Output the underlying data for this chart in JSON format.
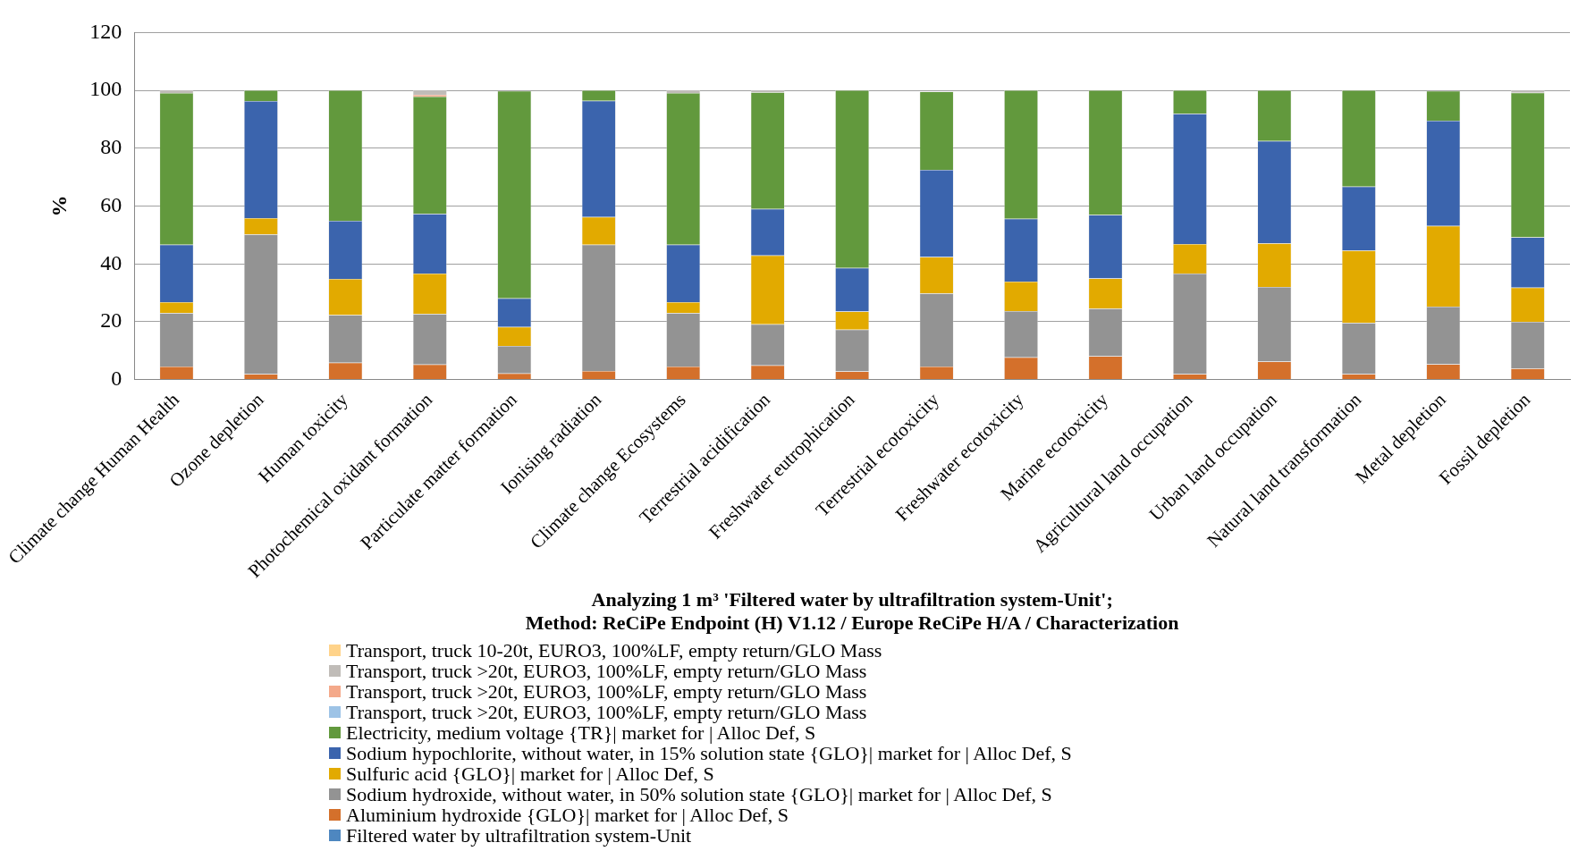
{
  "chart_data": {
    "type": "bar",
    "stacked": true,
    "xlabel": "Analyzing 1 m³ 'Filtered water by ultrafiltration system-Unit';\nMethod: ReCiPe Endpoint (H) V1.12 / Europe ReCiPe H/A / Characterization",
    "ylabel": "%",
    "categories": [
      "Climate change Human Health",
      "Ozone depletion",
      "Human toxicity",
      "Photochemical oxidant formation",
      "Particulate matter formation",
      "Ionising radiation",
      "Climate change Ecosystems",
      "Terrestrial acidification",
      "Freshwater eutrophication",
      "Terrestrial ecotoxicity",
      "Freshwater ecotoxicity",
      "Marine ecotoxicity",
      "Agricultural land occupation",
      "Urban land occupation",
      "Natural land transformation",
      "Metal depletion",
      "Fossil depletion"
    ],
    "ylim": [
      0,
      120
    ],
    "yticks": [
      0,
      20,
      40,
      60,
      80,
      100,
      120
    ],
    "grid": "y",
    "legend": "bottom",
    "series": [
      {
        "name": "Filtered water by ultrafiltration system-Unit",
        "color": "#4e87c0",
        "values": [
          null,
          null,
          null,
          null,
          null,
          null,
          null,
          null,
          null,
          null,
          null,
          null,
          null,
          null,
          null,
          null,
          null
        ]
      },
      {
        "name": "Aluminium hydroxide {GLO}| market for | Alloc Def, S",
        "color": "#d4702b",
        "values": [
          4.5,
          1.9,
          5.8,
          5.2,
          2.1,
          3.0,
          4.5,
          4.9,
          2.8,
          4.5,
          7.7,
          8.1,
          1.9,
          6.2,
          1.9,
          5.3,
          3.8
        ]
      },
      {
        "name": "Sodium hydroxide, without water, in 50% solution state {GLO}| market for | Alloc Def, S",
        "color": "#939393",
        "values": [
          18.5,
          48.3,
          16.5,
          17.5,
          9.5,
          43.6,
          18.5,
          14.2,
          14.5,
          25.3,
          16,
          16.4,
          34.8,
          25.8,
          17.7,
          19.9,
          16.2
        ]
      },
      {
        "name": "Sulfuric acid {GLO}| market for | Alloc Def, S",
        "color": "#e2aa00",
        "values": [
          3.8,
          5.6,
          12.5,
          14,
          6.6,
          9.6,
          3.8,
          23.8,
          6.2,
          12.6,
          10.2,
          10.5,
          10.2,
          15.1,
          25,
          27.9,
          11.8
        ]
      },
      {
        "name": "Sodium hypochlorite, without water, in 15% solution state {GLO}| market for | Alloc Def, S",
        "color": "#3b64ad",
        "values": [
          19.8,
          40.5,
          20.1,
          20.6,
          9.9,
          40.2,
          19.8,
          16.1,
          15.1,
          30.1,
          21.7,
          21.9,
          45,
          35.4,
          22.1,
          36.4,
          17.4
        ]
      },
      {
        "name": "Electricity, medium voltage {TR}| market for | Alloc Def, S",
        "color": "#62993d",
        "values": [
          52.5,
          3.7,
          45.1,
          40.6,
          71.7,
          3.6,
          52.5,
          40.3,
          61.4,
          27.1,
          44.4,
          43.1,
          8.1,
          17.5,
          33.3,
          10.3,
          50
        ]
      },
      {
        "name": "Transport, truck >20t, EURO3, 100%LF, empty return/GLO Mass",
        "color": "#9dc3e6",
        "values": [
          null,
          null,
          null,
          null,
          null,
          null,
          null,
          null,
          null,
          null,
          null,
          null,
          null,
          null,
          null,
          null,
          null
        ]
      },
      {
        "name": "Transport, truck >20t, EURO3, 100%LF, empty return/GLO Mass",
        "color": "#f4a98a",
        "values": [
          null,
          null,
          null,
          0.6,
          null,
          null,
          null,
          null,
          null,
          null,
          null,
          null,
          null,
          null,
          null,
          null,
          null
        ]
      },
      {
        "name": "Transport, truck >20t, EURO3, 100%LF, empty return/GLO Mass",
        "color": "#c0bcb8",
        "values": [
          0.9,
          null,
          null,
          1.5,
          null,
          null,
          0.9,
          0.7,
          null,
          null,
          null,
          null,
          null,
          null,
          null,
          null,
          0.8
        ]
      },
      {
        "name": "Transport, truck 10-20t, EURO3, 100%LF, empty return/GLO Mass",
        "color": "#ffd38a",
        "values": [
          null,
          null,
          null,
          null,
          null,
          null,
          null,
          null,
          null,
          null,
          null,
          null,
          null,
          null,
          null,
          null,
          null
        ]
      }
    ]
  }
}
